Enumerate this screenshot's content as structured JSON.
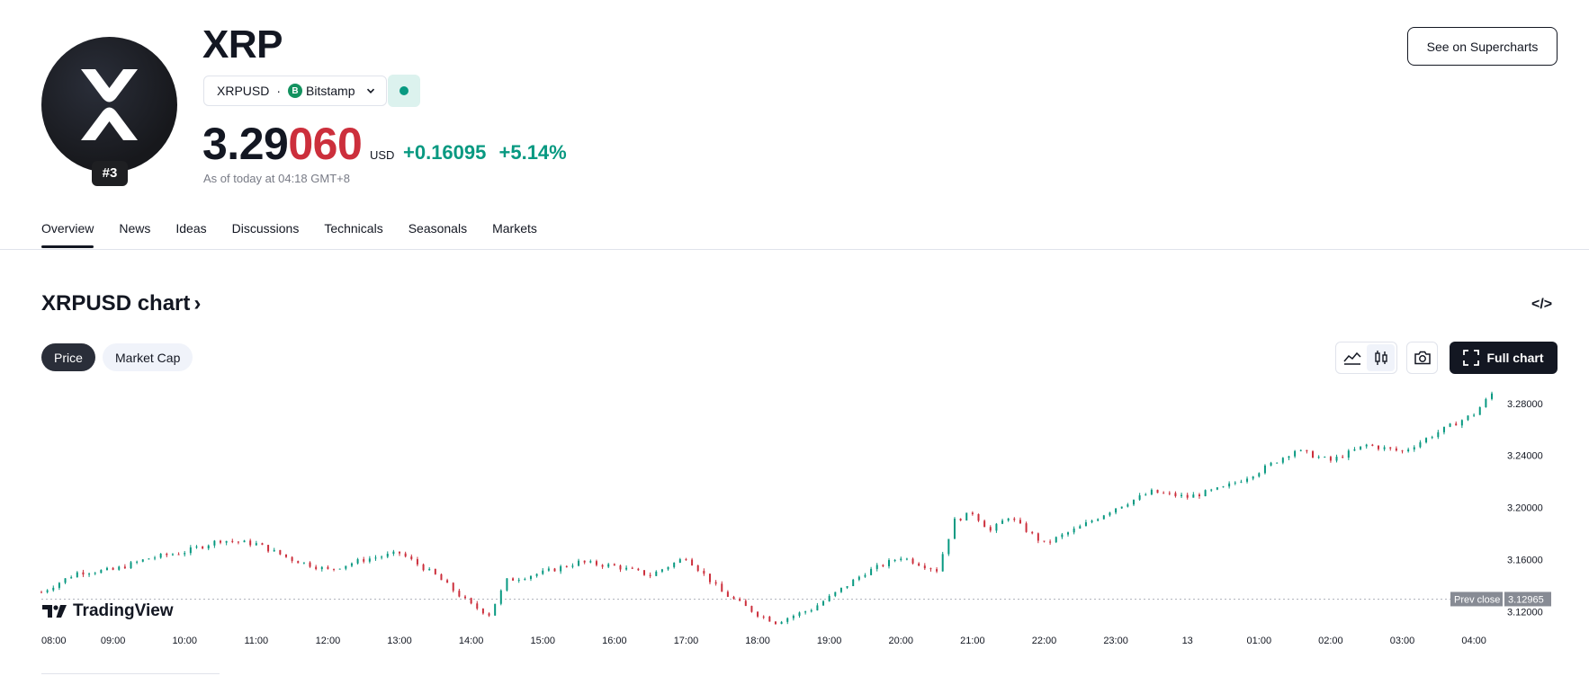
{
  "header": {
    "title": "XRP",
    "rank": "#3",
    "symbol": "XRPUSD",
    "separator": "·",
    "exchange": "Bitstamp",
    "exchange_icon_letter": "B",
    "price_main": "3.29",
    "price_tail": "060",
    "currency": "USD",
    "change_abs": "+0.16095",
    "change_pct": "+5.14%",
    "as_of": "As of today at 04:18 GMT+8",
    "supercharts_label": "See on Supercharts"
  },
  "tabs": [
    "Overview",
    "News",
    "Ideas",
    "Discussions",
    "Technicals",
    "Seasonals",
    "Markets"
  ],
  "active_tab": "Overview",
  "chart_section": {
    "heading": "XRPUSD chart",
    "heading_chevron": "›",
    "embed_icon": "</>",
    "segments": {
      "price": "Price",
      "market_cap": "Market Cap"
    },
    "full_chart_label": "Full chart",
    "tradingview_label": "TradingView",
    "prev_close_label": "Prev close",
    "prev_close_value": "3.12965",
    "icons": [
      "area-chart-icon",
      "candles-icon",
      "camera-icon",
      "fullscreen-icon",
      "tradingview-logo-icon"
    ]
  },
  "colors": {
    "up": "#089981",
    "down": "#cc2f3c",
    "ink": "#131722",
    "muted": "#787b86"
  },
  "chart_data": {
    "type": "candlestick",
    "title": "",
    "xlabel": "",
    "ylabel": "",
    "x_ticks": [
      "08:00",
      "09:00",
      "10:00",
      "11:00",
      "12:00",
      "13:00",
      "14:00",
      "15:00",
      "16:00",
      "17:00",
      "18:00",
      "19:00",
      "20:00",
      "21:00",
      "22:00",
      "23:00",
      "13",
      "01:00",
      "02:00",
      "03:00",
      "04:00"
    ],
    "y_ticks": [
      "3.28000",
      "3.24000",
      "3.20000",
      "3.16000",
      "3.12000"
    ],
    "ylim": [
      3.112,
      3.293
    ],
    "reference_line": 3.12965,
    "series": [
      {
        "x": "08:00",
        "y": 3.135
      },
      {
        "x": "08:30",
        "y": 3.15
      },
      {
        "x": "09:00",
        "y": 3.152
      },
      {
        "x": "09:30",
        "y": 3.161
      },
      {
        "x": "10:00",
        "y": 3.166
      },
      {
        "x": "10:30",
        "y": 3.175
      },
      {
        "x": "11:00",
        "y": 3.172
      },
      {
        "x": "11:30",
        "y": 3.16
      },
      {
        "x": "12:00",
        "y": 3.152
      },
      {
        "x": "12:30",
        "y": 3.16
      },
      {
        "x": "13:00",
        "y": 3.165
      },
      {
        "x": "13:30",
        "y": 3.148
      },
      {
        "x": "14:00",
        "y": 3.125
      },
      {
        "x": "14:15",
        "y": 3.118
      },
      {
        "x": "14:30",
        "y": 3.144
      },
      {
        "x": "15:00",
        "y": 3.15
      },
      {
        "x": "15:30",
        "y": 3.158
      },
      {
        "x": "16:00",
        "y": 3.155
      },
      {
        "x": "16:30",
        "y": 3.148
      },
      {
        "x": "17:00",
        "y": 3.162
      },
      {
        "x": "17:30",
        "y": 3.135
      },
      {
        "x": "18:00",
        "y": 3.118
      },
      {
        "x": "18:15",
        "y": 3.112
      },
      {
        "x": "18:45",
        "y": 3.122
      },
      {
        "x": "19:00",
        "y": 3.131
      },
      {
        "x": "19:30",
        "y": 3.15
      },
      {
        "x": "20:00",
        "y": 3.162
      },
      {
        "x": "20:30",
        "y": 3.152
      },
      {
        "x": "20:45",
        "y": 3.19
      },
      {
        "x": "21:00",
        "y": 3.196
      },
      {
        "x": "21:15",
        "y": 3.182
      },
      {
        "x": "21:30",
        "y": 3.193
      },
      {
        "x": "22:00",
        "y": 3.172
      },
      {
        "x": "22:30",
        "y": 3.185
      },
      {
        "x": "23:00",
        "y": 3.2
      },
      {
        "x": "23:30",
        "y": 3.212
      },
      {
        "x": "00:00",
        "y": 3.208
      },
      {
        "x": "00:30",
        "y": 3.215
      },
      {
        "x": "01:00",
        "y": 3.228
      },
      {
        "x": "01:30",
        "y": 3.244
      },
      {
        "x": "02:00",
        "y": 3.236
      },
      {
        "x": "02:30",
        "y": 3.248
      },
      {
        "x": "03:00",
        "y": 3.243
      },
      {
        "x": "03:30",
        "y": 3.258
      },
      {
        "x": "04:00",
        "y": 3.272
      },
      {
        "x": "04:18",
        "y": 3.2906
      }
    ]
  }
}
